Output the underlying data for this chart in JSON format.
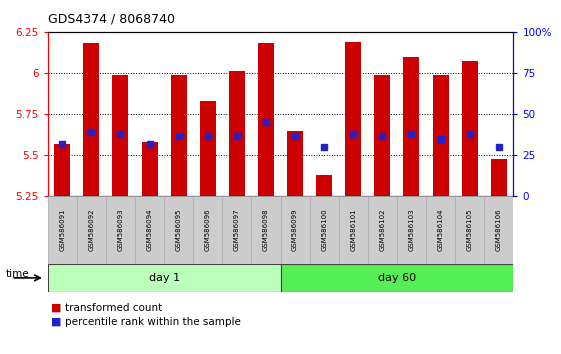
{
  "title": "GDS4374 / 8068740",
  "samples": [
    "GSM586091",
    "GSM586092",
    "GSM586093",
    "GSM586094",
    "GSM586095",
    "GSM586096",
    "GSM586097",
    "GSM586098",
    "GSM586099",
    "GSM586100",
    "GSM586101",
    "GSM586102",
    "GSM586103",
    "GSM586104",
    "GSM586105",
    "GSM586106"
  ],
  "red_values": [
    5.57,
    6.18,
    5.99,
    5.58,
    5.99,
    5.83,
    6.01,
    6.18,
    5.65,
    5.38,
    6.19,
    5.99,
    6.1,
    5.99,
    6.07,
    5.48
  ],
  "blue_values": [
    5.57,
    5.64,
    5.63,
    5.57,
    5.62,
    5.62,
    5.62,
    5.7,
    5.62,
    5.55,
    5.63,
    5.62,
    5.63,
    5.6,
    5.63,
    5.55
  ],
  "ylim": [
    5.25,
    6.25
  ],
  "y2lim": [
    0,
    100
  ],
  "yticks": [
    5.25,
    5.5,
    5.75,
    6.0,
    6.25
  ],
  "ytick_labels": [
    "5.25",
    "5.5",
    "5.75",
    "6",
    "6.25"
  ],
  "y2ticks": [
    0,
    25,
    50,
    75,
    100
  ],
  "y2tick_labels": [
    "0",
    "25",
    "50",
    "75",
    "100%"
  ],
  "grid_values": [
    5.5,
    5.75,
    6.0
  ],
  "day1_samples": 8,
  "day60_samples": 8,
  "day1_label": "day 1",
  "day60_label": "day 60",
  "time_label": "time",
  "legend_red": "transformed count",
  "legend_blue": "percentile rank within the sample",
  "bar_color": "#cc0000",
  "blue_color": "#2222cc",
  "bar_width": 0.55,
  "baseline": 5.25,
  "day1_bg": "#bbffbb",
  "day60_bg": "#55ee55",
  "label_bg": "#cccccc"
}
